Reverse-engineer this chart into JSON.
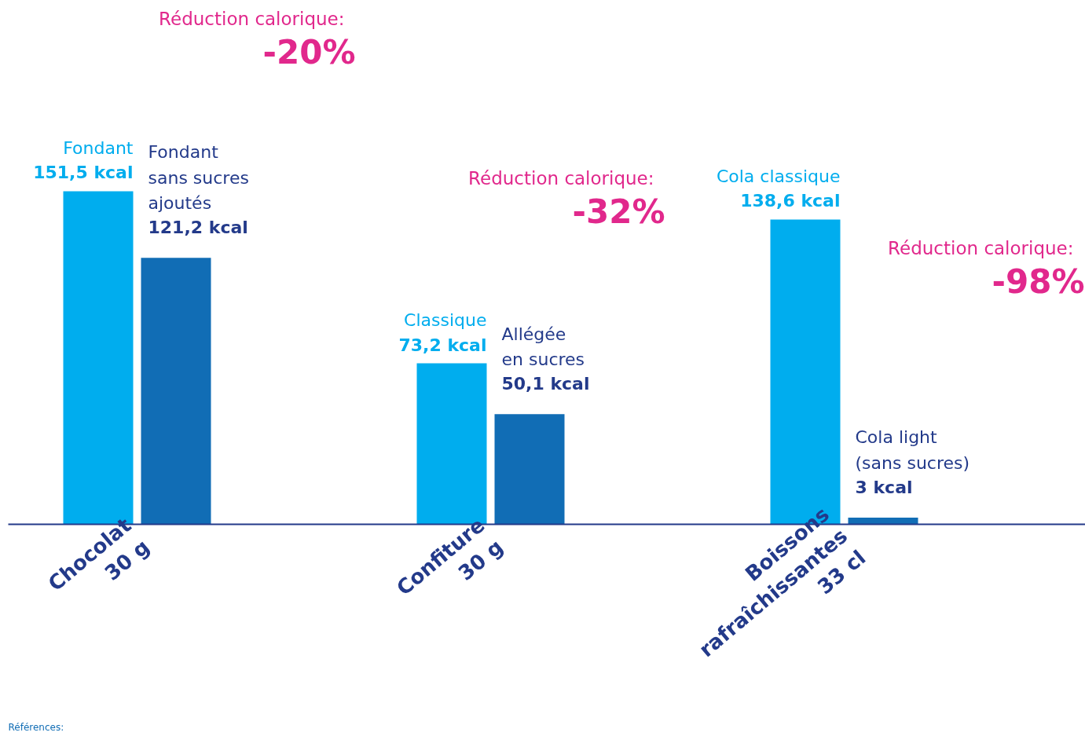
{
  "chart_data": {
    "type": "bar",
    "categories": [
      "Chocolat\n30 g",
      "Confiture\n30 g",
      "Boissons\nrafraîchissantes\n33 cl"
    ],
    "series": [
      {
        "color": "#00adee",
        "values": [
          151.5,
          73.2,
          138.6
        ],
        "value_labels": [
          "151,5 kcal",
          "73,2 kcal",
          "138,6 kcal"
        ]
      },
      {
        "color": "#116db5",
        "values": [
          121.2,
          50.1,
          3
        ],
        "value_labels": [
          "121,2 kcal",
          "50,1 kcal",
          "3 kcal"
        ]
      }
    ],
    "grid": false,
    "tick_labels": "x",
    "annotations": [
      "Fondant",
      "Fondant\nsans sucres\najoutés",
      "Classique",
      "Allégée\nen sucres",
      "Cola classique",
      "Cola light\n(sans sucres)",
      "Réduction calorique:",
      "-20%",
      "Réduction calorique:",
      "-32%",
      "Réduction calorique:",
      "-98%",
      "Références:"
    ]
  }
}
